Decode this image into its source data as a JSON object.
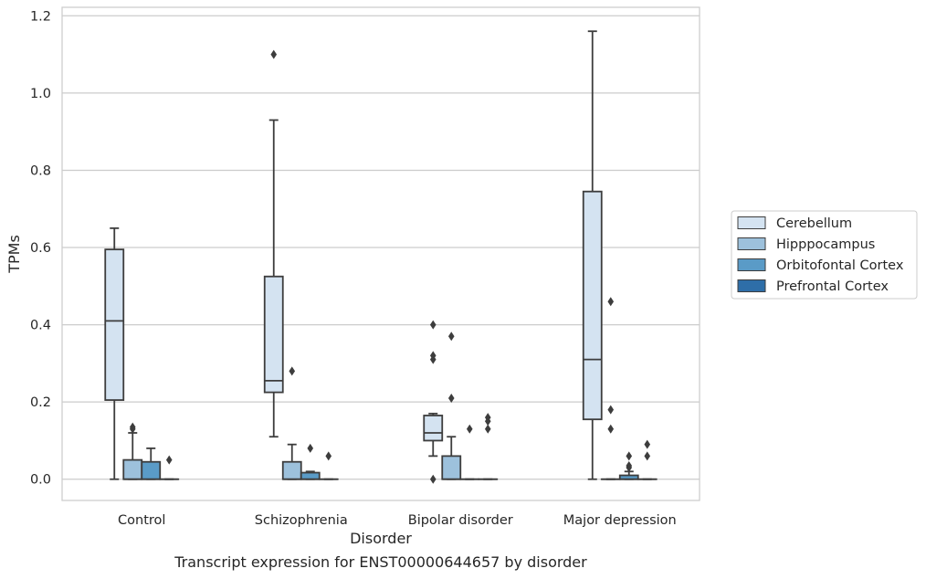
{
  "caption": "Transcript expression for ENST00000644657 by disorder",
  "chart_data": {
    "type": "box",
    "xlabel": "Disorder",
    "ylabel": "TPMs",
    "ylim": [
      -0.055,
      1.222
    ],
    "yticks": [
      0.0,
      0.2,
      0.4,
      0.6,
      0.8,
      1.0,
      1.2
    ],
    "ytick_labels": [
      "0.0",
      "0.2",
      "0.4",
      "0.6",
      "0.8",
      "1.0",
      "1.2"
    ],
    "categories": [
      "Control",
      "Schizophrenia",
      "Bipolar disorder",
      "Major depression"
    ],
    "grid": "horizontal",
    "legend_position": "right",
    "series": [
      {
        "name": "Cerebellum",
        "color": "#d4e3f1",
        "boxes": [
          {
            "q1": 0.205,
            "median": 0.41,
            "q3": 0.595,
            "whislo": 0.0,
            "whishi": 0.65,
            "fliers": []
          },
          {
            "q1": 0.225,
            "median": 0.255,
            "q3": 0.525,
            "whislo": 0.11,
            "whishi": 0.93,
            "fliers": [
              1.1
            ]
          },
          {
            "q1": 0.1,
            "median": 0.12,
            "q3": 0.165,
            "whislo": 0.06,
            "whishi": 0.17,
            "fliers": [
              0.4,
              0.32,
              0.31,
              0.0
            ]
          },
          {
            "q1": 0.155,
            "median": 0.31,
            "q3": 0.745,
            "whislo": 0.0,
            "whishi": 1.16,
            "fliers": []
          }
        ]
      },
      {
        "name": "Hipppocampus",
        "color": "#9dc1dc",
        "boxes": [
          {
            "q1": 0.0,
            "median": 0.0,
            "q3": 0.05,
            "whislo": 0.0,
            "whishi": 0.12,
            "fliers": [
              0.135,
              0.13
            ]
          },
          {
            "q1": 0.0,
            "median": 0.0,
            "q3": 0.045,
            "whislo": 0.0,
            "whishi": 0.09,
            "fliers": [
              0.28
            ]
          },
          {
            "q1": 0.0,
            "median": 0.0,
            "q3": 0.06,
            "whislo": 0.0,
            "whishi": 0.11,
            "fliers": [
              0.37,
              0.21
            ]
          },
          {
            "q1": 0.0,
            "median": 0.0,
            "q3": 0.0,
            "whislo": 0.0,
            "whishi": 0.0,
            "fliers": [
              0.46,
              0.18,
              0.13
            ]
          }
        ]
      },
      {
        "name": "Orbitofontal Cortex",
        "color": "#5a9bc7",
        "boxes": [
          {
            "q1": 0.0,
            "median": 0.0,
            "q3": 0.045,
            "whislo": 0.0,
            "whishi": 0.08,
            "fliers": []
          },
          {
            "q1": 0.0,
            "median": 0.0,
            "q3": 0.017,
            "whislo": 0.0,
            "whishi": 0.02,
            "fliers": [
              0.08
            ]
          },
          {
            "q1": 0.0,
            "median": 0.0,
            "q3": 0.0,
            "whislo": 0.0,
            "whishi": 0.0,
            "fliers": [
              0.13
            ]
          },
          {
            "q1": 0.0,
            "median": 0.0,
            "q3": 0.01,
            "whislo": 0.0,
            "whishi": 0.02,
            "fliers": [
              0.06,
              0.035,
              0.03
            ]
          }
        ]
      },
      {
        "name": "Prefrontal Cortex",
        "color": "#2e6ea8",
        "boxes": [
          {
            "q1": 0.0,
            "median": 0.0,
            "q3": 0.0,
            "whislo": 0.0,
            "whishi": 0.0,
            "fliers": [
              0.05
            ]
          },
          {
            "q1": 0.0,
            "median": 0.0,
            "q3": 0.0,
            "whislo": 0.0,
            "whishi": 0.0,
            "fliers": [
              0.06
            ]
          },
          {
            "q1": 0.0,
            "median": 0.0,
            "q3": 0.0,
            "whislo": 0.0,
            "whishi": 0.0,
            "fliers": [
              0.16,
              0.15,
              0.13
            ]
          },
          {
            "q1": 0.0,
            "median": 0.0,
            "q3": 0.0,
            "whislo": 0.0,
            "whishi": 0.0,
            "fliers": [
              0.09,
              0.06
            ]
          }
        ]
      }
    ]
  }
}
